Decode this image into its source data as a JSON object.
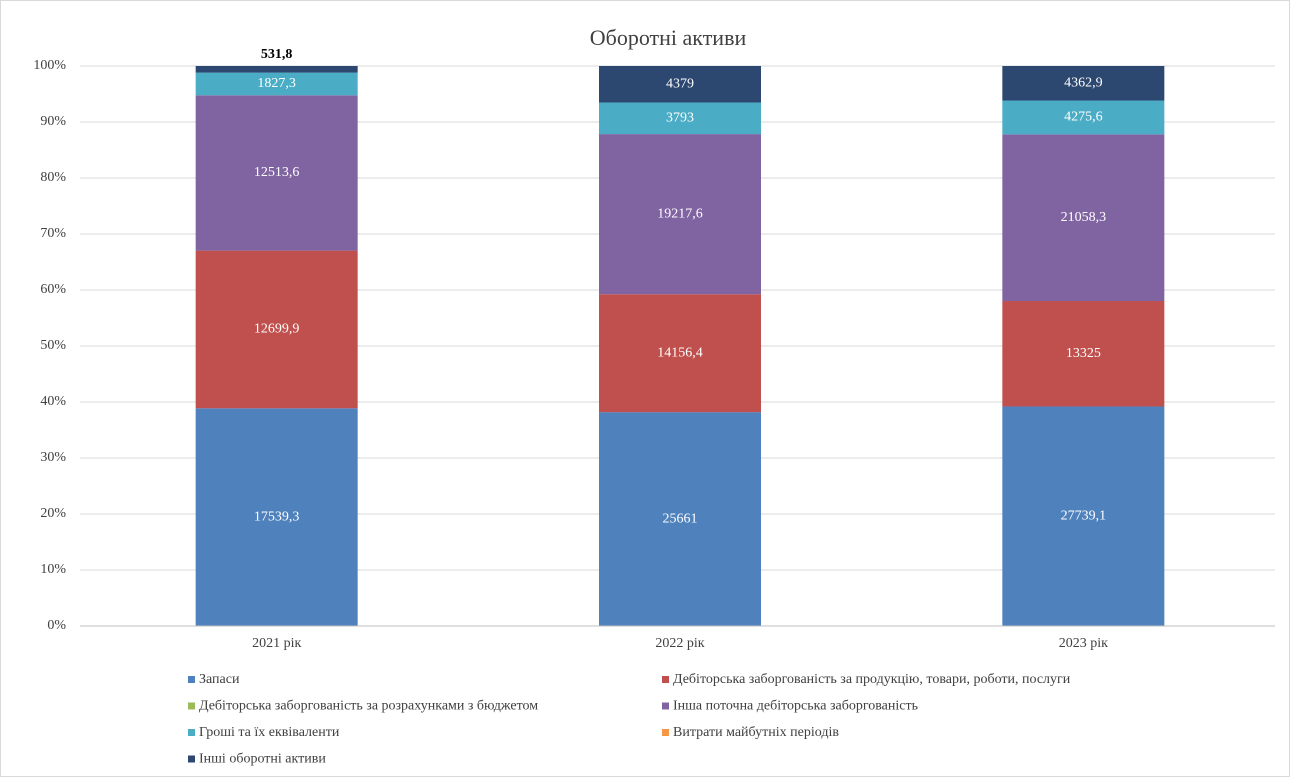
{
  "chart_data": {
    "type": "bar",
    "stack": "percent",
    "title": "Оборотні активи",
    "categories": [
      "2021 рік",
      "2022 рік",
      "2023 рік"
    ],
    "series": [
      {
        "name": "Запаси",
        "color": "#4f81bd",
        "values": [
          17539.3,
          25661,
          27739.1
        ],
        "value_labels": [
          "17539,3",
          "25661",
          "27739,1"
        ]
      },
      {
        "name": "Дебіторська заборгованість за продукцію, товари, роботи, послуги",
        "color": "#c0504d",
        "values": [
          12699.9,
          14156.4,
          13325
        ],
        "value_labels": [
          "12699,9",
          "14156,4",
          "13325"
        ]
      },
      {
        "name": "Дебіторська заборгованість за розрахунками з бюджетом",
        "color": "#9bbb59",
        "values": [
          0,
          0,
          0
        ],
        "value_labels": [
          null,
          null,
          null
        ]
      },
      {
        "name": "Інша поточна дебіторська заборгованість",
        "color": "#8064a2",
        "values": [
          12513.6,
          19217.6,
          21058.3
        ],
        "value_labels": [
          "12513,6",
          "19217,6",
          "21058,3"
        ]
      },
      {
        "name": "Гроші та їх еквіваленти",
        "color": "#4bacc6",
        "values": [
          1827.3,
          3793,
          4275.6
        ],
        "value_labels": [
          "1827,3",
          "3793",
          "4275,6"
        ]
      },
      {
        "name": "Витрати майбутніх періодів",
        "color": "#f79646",
        "values": [
          0,
          0,
          0
        ],
        "value_labels": [
          null,
          null,
          null
        ]
      },
      {
        "name": "Інші оборотні активи",
        "color": "#2c4770",
        "values": [
          531.8,
          4379,
          4362.9
        ],
        "value_labels": [
          "531,8",
          "4379",
          "4362,9"
        ]
      }
    ],
    "ylim": [
      0,
      100
    ],
    "yticks": [
      {
        "value": 0,
        "label": "0%"
      },
      {
        "value": 10,
        "label": "10%"
      },
      {
        "value": 20,
        "label": "20%"
      },
      {
        "value": 30,
        "label": "30%"
      },
      {
        "value": 40,
        "label": "40%"
      },
      {
        "value": 50,
        "label": "50%"
      },
      {
        "value": 60,
        "label": "60%"
      },
      {
        "value": 70,
        "label": "70%"
      },
      {
        "value": 80,
        "label": "80%"
      },
      {
        "value": 90,
        "label": "90%"
      },
      {
        "value": 100,
        "label": "100%"
      }
    ],
    "grid": true,
    "legend": "bottom"
  }
}
